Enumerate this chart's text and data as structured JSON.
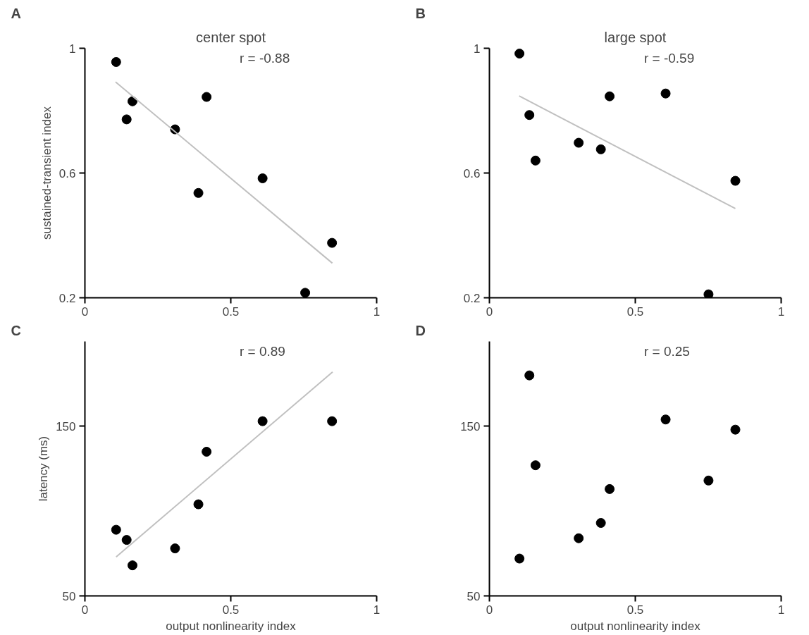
{
  "chart_data": [
    {
      "type": "scatter",
      "title": "A",
      "subtitle": "center spot",
      "ylabel": "sustained-transient index",
      "annotations": [
        "r = -0.88"
      ],
      "xlim": [
        0,
        1
      ],
      "ylim": [
        0.2,
        1
      ],
      "xticks": [
        0,
        0.5,
        1
      ],
      "yticks": [
        0.2,
        0.6,
        1
      ],
      "series": [
        {
          "marker": "circle",
          "color": "#000000",
          "x": [
            0.107,
            0.163,
            0.143,
            0.309,
            0.417,
            0.389,
            0.609,
            0.847,
            0.755
          ],
          "values": [
            0.956,
            0.83,
            0.772,
            0.74,
            0.844,
            0.536,
            0.583,
            0.376,
            0.216
          ]
        },
        {
          "type": "line",
          "color": "#c0c0c0",
          "x": [
            0.105,
            0.848
          ],
          "values": [
            0.892,
            0.311
          ]
        }
      ]
    },
    {
      "type": "scatter",
      "title": "B",
      "subtitle": "large spot",
      "annotations": [
        "r = -0.59"
      ],
      "xlim": [
        0,
        1
      ],
      "ylim": [
        0.2,
        1
      ],
      "xticks": [
        0,
        0.5,
        1
      ],
      "yticks": [
        0.2,
        0.6,
        1
      ],
      "series": [
        {
          "marker": "circle",
          "color": "#000000",
          "x": [
            0.103,
            0.137,
            0.158,
            0.306,
            0.382,
            0.412,
            0.604,
            0.843,
            0.751
          ],
          "values": [
            0.983,
            0.786,
            0.64,
            0.697,
            0.676,
            0.846,
            0.855,
            0.575,
            0.211
          ]
        },
        {
          "type": "line",
          "color": "#c0c0c0",
          "x": [
            0.102,
            0.843
          ],
          "values": [
            0.847,
            0.486
          ]
        }
      ]
    },
    {
      "type": "scatter",
      "title": "C",
      "xlabel": "output nonlinearity index",
      "ylabel": "latency (ms)",
      "annotations": [
        "r = 0.89"
      ],
      "xlim": [
        0,
        1
      ],
      "ylim": [
        50,
        200
      ],
      "xticks": [
        0,
        0.5,
        1
      ],
      "yticks": [
        50,
        150
      ],
      "series": [
        {
          "marker": "circle",
          "color": "#000000",
          "x": [
            0.107,
            0.143,
            0.163,
            0.309,
            0.389,
            0.417,
            0.609,
            0.847
          ],
          "values": [
            89,
            83,
            68,
            78,
            104,
            135,
            153,
            153
          ]
        },
        {
          "type": "line",
          "color": "#c0c0c0",
          "x": [
            0.107,
            0.849
          ],
          "values": [
            73,
            182
          ]
        }
      ]
    },
    {
      "type": "scatter",
      "title": "D",
      "xlabel": "output nonlinearity index",
      "annotations": [
        "r = 0.25"
      ],
      "xlim": [
        0,
        1
      ],
      "ylim": [
        50,
        200
      ],
      "xticks": [
        0,
        0.5,
        1
      ],
      "yticks": [
        50,
        150
      ],
      "series": [
        {
          "marker": "circle",
          "color": "#000000",
          "x": [
            0.103,
            0.137,
            0.158,
            0.306,
            0.382,
            0.412,
            0.604,
            0.843,
            0.751
          ],
          "values": [
            72,
            180,
            127,
            84,
            93,
            113,
            154,
            148,
            118
          ]
        }
      ]
    }
  ]
}
